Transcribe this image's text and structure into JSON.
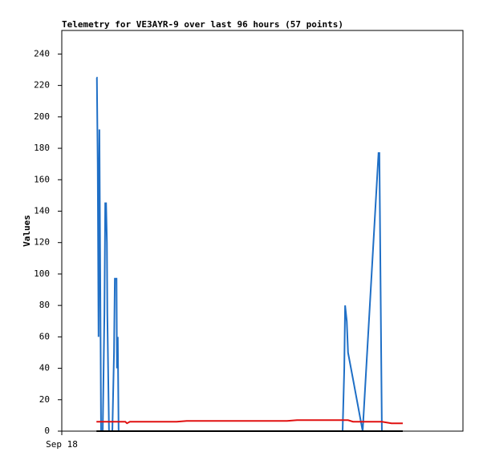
{
  "chart_data": {
    "type": "line",
    "title": "Telemetry for VE3AYR-9 over last 96 hours (57 points)",
    "y_label": "Values",
    "x": [
      8.3,
      8.4,
      8.6,
      8.8,
      9.0,
      9.2,
      9.4,
      9.8,
      10.2,
      10.4,
      10.6,
      10.8,
      10.9,
      11.3,
      12.1,
      12.5,
      12.7,
      13.1,
      13.2,
      13.4,
      13.6,
      15.2,
      15.6,
      16.3,
      17.9,
      20.3,
      22.7,
      25.1,
      27.5,
      29.9,
      32.3,
      34.7,
      37.1,
      39.5,
      41.8,
      44.3,
      46.7,
      49.1,
      51.5,
      53.9,
      56.3,
      58.7,
      61.1,
      63.5,
      65.9,
      67.2,
      67.6,
      67.8,
      68.2,
      68.5,
      69.7,
      72.0,
      75.8,
      76.0,
      76.6,
      78.9,
      81.6
    ],
    "xlim": [
      0,
      96
    ],
    "xticks": [
      {
        "value": 0,
        "label": "Sep 18"
      }
    ],
    "ylim": [
      0,
      255
    ],
    "yticks": [
      0,
      20,
      40,
      60,
      80,
      100,
      120,
      140,
      160,
      180,
      200,
      220,
      240
    ],
    "series": [
      {
        "color": "#1f6fc6",
        "values": [
          225,
          225,
          170,
          60,
          192,
          100,
          0,
          0,
          75,
          145,
          145,
          120,
          75,
          0,
          0,
          50,
          97,
          97,
          40,
          60,
          0,
          0,
          0,
          0,
          0,
          0,
          0,
          0,
          0,
          0,
          0,
          0,
          0,
          0,
          0,
          0,
          0,
          0,
          0,
          0,
          0,
          0,
          0,
          0,
          0,
          0,
          40,
          80,
          70,
          50,
          33,
          0,
          177,
          177,
          0,
          0,
          0
        ]
      },
      {
        "color": "#e01010",
        "values": [
          6,
          6,
          6,
          6,
          6,
          6,
          6,
          6,
          6,
          6,
          6,
          6,
          6,
          6,
          6,
          6,
          6,
          6,
          6,
          6,
          6,
          6,
          5,
          6,
          6,
          6,
          6,
          6,
          6,
          6.5,
          6.5,
          6.5,
          6.5,
          6.5,
          6.5,
          6.5,
          6.5,
          6.5,
          6.5,
          6.5,
          7,
          7,
          7,
          7,
          7,
          7,
          7,
          7,
          7,
          7,
          6,
          6,
          6,
          6,
          6,
          5,
          5
        ]
      },
      {
        "color": "#000000",
        "values": [
          0,
          0,
          0,
          0,
          0,
          0,
          0,
          0,
          0,
          0,
          0,
          0,
          0,
          0,
          0,
          0,
          0,
          0,
          0,
          0,
          0,
          0,
          0,
          0,
          0,
          0,
          0,
          0,
          0,
          0,
          0,
          0,
          0,
          0,
          0,
          0,
          0,
          0,
          0,
          0,
          0,
          0,
          0,
          0,
          0,
          0,
          0,
          0,
          0,
          0,
          0,
          0,
          0,
          0,
          0,
          0,
          0
        ]
      }
    ]
  }
}
